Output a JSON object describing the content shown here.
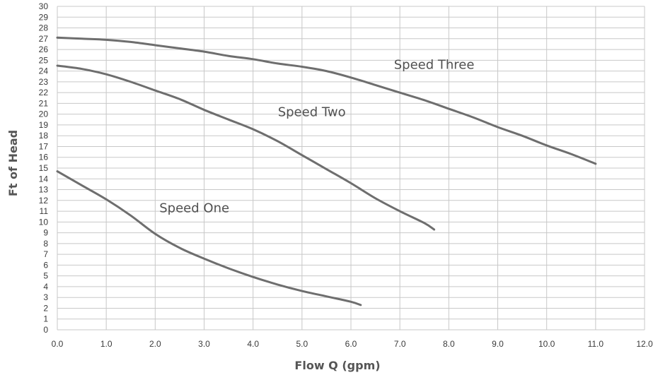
{
  "chart_data": {
    "type": "line",
    "title": "",
    "xlabel": "Flow Q (gpm)",
    "ylabel": "Ft of Head",
    "xlim": [
      0,
      12
    ],
    "ylim": [
      0,
      30
    ],
    "grid": true,
    "x_ticks": [
      "0.0",
      "1.0",
      "2.0",
      "3.0",
      "4.0",
      "5.0",
      "6.0",
      "7.0",
      "8.0",
      "9.0",
      "10.0",
      "11.0",
      "12.0"
    ],
    "y_ticks": [
      "0",
      "1",
      "2",
      "3",
      "4",
      "5",
      "6",
      "7",
      "8",
      "9",
      "10",
      "11",
      "12",
      "13",
      "14",
      "15",
      "16",
      "17",
      "18",
      "19",
      "20",
      "21",
      "22",
      "23",
      "24",
      "25",
      "26",
      "27",
      "28",
      "29",
      "30"
    ],
    "series": [
      {
        "name": "Speed One",
        "label_at": [
          2.8,
          10.9
        ],
        "points": [
          [
            0.0,
            14.7
          ],
          [
            0.5,
            13.4
          ],
          [
            1.0,
            12.1
          ],
          [
            1.5,
            10.6
          ],
          [
            2.0,
            8.9
          ],
          [
            2.5,
            7.6
          ],
          [
            3.0,
            6.6
          ],
          [
            3.5,
            5.7
          ],
          [
            4.0,
            4.9
          ],
          [
            4.5,
            4.2
          ],
          [
            5.0,
            3.6
          ],
          [
            5.5,
            3.1
          ],
          [
            6.0,
            2.6
          ],
          [
            6.2,
            2.3
          ]
        ]
      },
      {
        "name": "Speed Two",
        "label_at": [
          5.2,
          19.8
        ],
        "points": [
          [
            0.0,
            24.5
          ],
          [
            0.5,
            24.2
          ],
          [
            1.0,
            23.7
          ],
          [
            1.5,
            23.0
          ],
          [
            2.0,
            22.2
          ],
          [
            2.5,
            21.4
          ],
          [
            3.0,
            20.4
          ],
          [
            3.5,
            19.5
          ],
          [
            4.0,
            18.6
          ],
          [
            4.5,
            17.5
          ],
          [
            5.0,
            16.2
          ],
          [
            5.5,
            14.9
          ],
          [
            6.0,
            13.6
          ],
          [
            6.5,
            12.2
          ],
          [
            7.0,
            11.0
          ],
          [
            7.5,
            9.9
          ],
          [
            7.7,
            9.3
          ]
        ]
      },
      {
        "name": "Speed Three",
        "label_at": [
          7.7,
          24.2
        ],
        "points": [
          [
            0.0,
            27.1
          ],
          [
            0.5,
            27.0
          ],
          [
            1.0,
            26.9
          ],
          [
            1.5,
            26.7
          ],
          [
            2.0,
            26.4
          ],
          [
            2.5,
            26.1
          ],
          [
            3.0,
            25.8
          ],
          [
            3.5,
            25.4
          ],
          [
            4.0,
            25.1
          ],
          [
            4.5,
            24.7
          ],
          [
            5.0,
            24.4
          ],
          [
            5.5,
            24.0
          ],
          [
            6.0,
            23.4
          ],
          [
            6.5,
            22.7
          ],
          [
            7.0,
            22.0
          ],
          [
            7.5,
            21.3
          ],
          [
            8.0,
            20.5
          ],
          [
            8.5,
            19.7
          ],
          [
            9.0,
            18.8
          ],
          [
            9.5,
            18.0
          ],
          [
            10.0,
            17.1
          ],
          [
            10.5,
            16.3
          ],
          [
            11.0,
            15.4
          ]
        ]
      }
    ]
  }
}
